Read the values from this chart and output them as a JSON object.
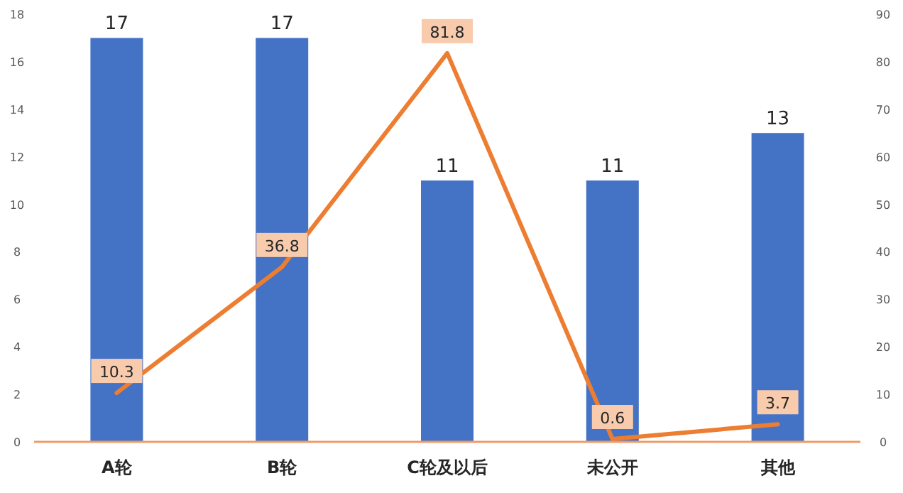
{
  "chart_data": {
    "type": "bar",
    "categories": [
      "A轮",
      "B轮",
      "C轮及以后",
      "未公开",
      "其他"
    ],
    "series": [
      {
        "color": "#4472c4",
        "values": [
          17,
          17,
          11,
          11,
          13
        ]
      },
      {
        "type": "line",
        "axis": "y2",
        "color": "#ed7d31",
        "marker": "none",
        "values": [
          10.3,
          36.8,
          81.8,
          0.6,
          3.7
        ]
      }
    ],
    "ylim": [
      0,
      18
    ],
    "yticks": [
      0,
      2,
      4,
      6,
      8,
      10,
      12,
      14,
      16,
      18
    ],
    "y2lim": [
      0,
      90
    ],
    "y2ticks": [
      0,
      10,
      20,
      30,
      40,
      50,
      60,
      70,
      80,
      90
    ],
    "data_labels": true,
    "grid": false
  }
}
